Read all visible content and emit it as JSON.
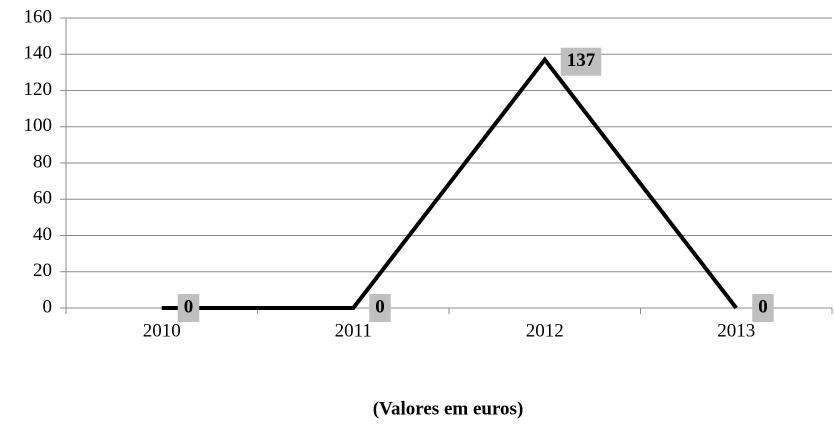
{
  "chart_data": {
    "type": "line",
    "x_label": "(Valores em euros)",
    "categories": [
      "2010",
      "2011",
      "2012",
      "2013"
    ],
    "series": [
      {
        "name": null,
        "color": "#000000",
        "values": [
          0,
          0,
          137,
          0
        ]
      }
    ],
    "ylim": [
      0,
      160
    ],
    "yticks": [
      0,
      20,
      40,
      60,
      80,
      100,
      120,
      140,
      160
    ],
    "grid": true
  }
}
